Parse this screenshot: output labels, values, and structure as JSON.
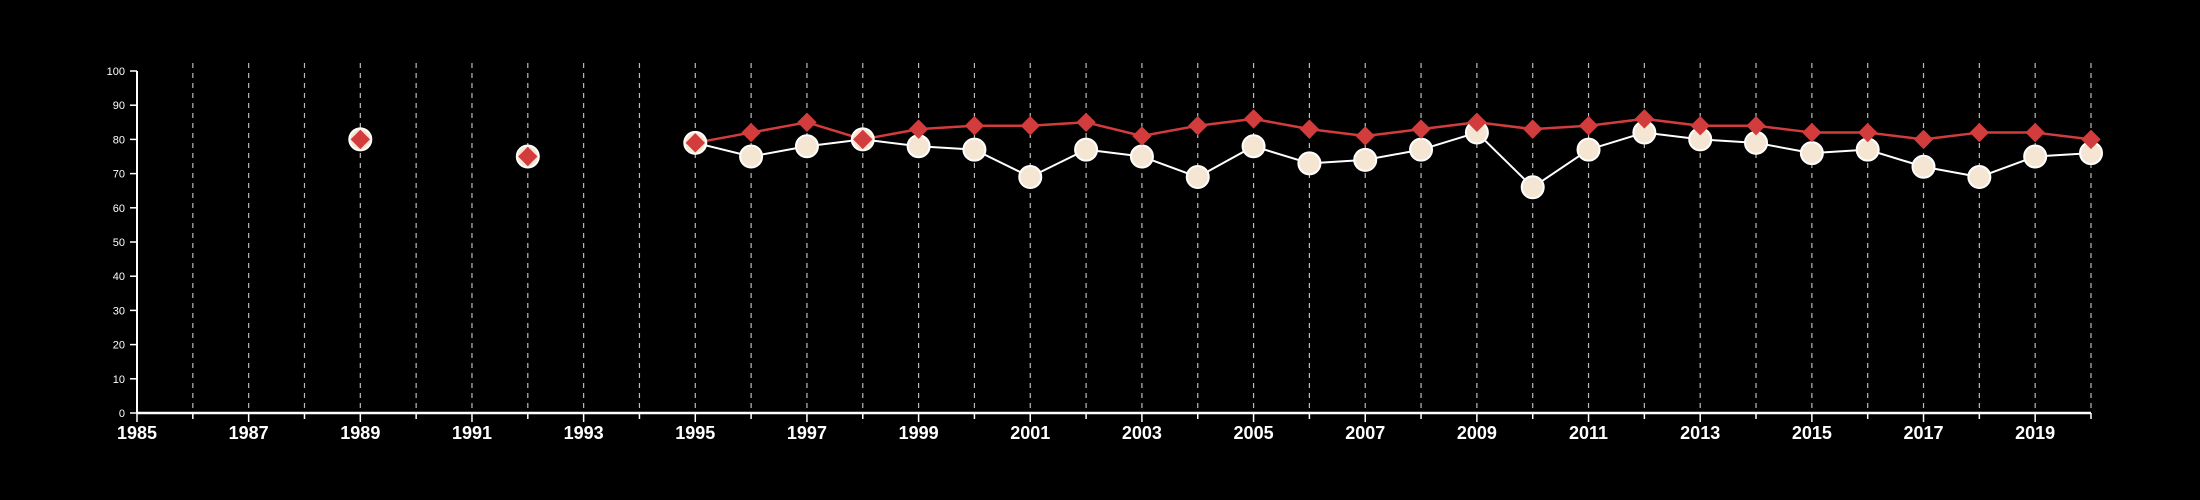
{
  "chart_data": {
    "type": "line",
    "title": "",
    "xlabel": "",
    "ylabel": "",
    "xlim": [
      1985,
      2020
    ],
    "ylim": [
      0,
      100
    ],
    "y_ticks": [
      0,
      10,
      20,
      30,
      40,
      50,
      60,
      70,
      80,
      90,
      100
    ],
    "x_ticks": [
      1985,
      1987,
      1989,
      1991,
      1993,
      1995,
      1997,
      1999,
      2001,
      2003,
      2005,
      2007,
      2009,
      2011,
      2013,
      2015,
      2017,
      2019
    ],
    "x_tick_labels": [
      "1985",
      "1987",
      "1989",
      "1991",
      "1993",
      "1995",
      "1997",
      "1999",
      "2001",
      "2003",
      "2005",
      "2007",
      "2009",
      "2011",
      "2013",
      "2015",
      "2017",
      "2019"
    ],
    "vertical_dashed_gridlines": true,
    "legend": "none",
    "series": [
      {
        "marker": "circle",
        "color": "#f5e6d3",
        "points": [
          {
            "x": 1989,
            "y": 80
          },
          {
            "x": 1992,
            "y": 75
          },
          {
            "x": 1995,
            "y": 79
          },
          {
            "x": 1996,
            "y": 75
          },
          {
            "x": 1997,
            "y": 78
          },
          {
            "x": 1998,
            "y": 80
          },
          {
            "x": 1999,
            "y": 78
          },
          {
            "x": 2000,
            "y": 77
          },
          {
            "x": 2001,
            "y": 69
          },
          {
            "x": 2002,
            "y": 77
          },
          {
            "x": 2003,
            "y": 75
          },
          {
            "x": 2004,
            "y": 69
          },
          {
            "x": 2005,
            "y": 78
          },
          {
            "x": 2006,
            "y": 73
          },
          {
            "x": 2007,
            "y": 74
          },
          {
            "x": 2008,
            "y": 77
          },
          {
            "x": 2009,
            "y": 82
          },
          {
            "x": 2010,
            "y": 66
          },
          {
            "x": 2011,
            "y": 77
          },
          {
            "x": 2012,
            "y": 82
          },
          {
            "x": 2013,
            "y": 80
          },
          {
            "x": 2014,
            "y": 79
          },
          {
            "x": 2015,
            "y": 76
          },
          {
            "x": 2016,
            "y": 77
          },
          {
            "x": 2017,
            "y": 72
          },
          {
            "x": 2018,
            "y": 69
          },
          {
            "x": 2019,
            "y": 75
          },
          {
            "x": 2020,
            "y": 76
          }
        ]
      },
      {
        "marker": "diamond",
        "color": "#d23c3c",
        "points": [
          {
            "x": 1989,
            "y": 80
          },
          {
            "x": 1992,
            "y": 75
          },
          {
            "x": 1995,
            "y": 79
          },
          {
            "x": 1996,
            "y": 82
          },
          {
            "x": 1997,
            "y": 85
          },
          {
            "x": 1998,
            "y": 80
          },
          {
            "x": 1999,
            "y": 83
          },
          {
            "x": 2000,
            "y": 84
          },
          {
            "x": 2001,
            "y": 84
          },
          {
            "x": 2002,
            "y": 85
          },
          {
            "x": 2003,
            "y": 81
          },
          {
            "x": 2004,
            "y": 84
          },
          {
            "x": 2005,
            "y": 86
          },
          {
            "x": 2006,
            "y": 83
          },
          {
            "x": 2007,
            "y": 81
          },
          {
            "x": 2008,
            "y": 83
          },
          {
            "x": 2009,
            "y": 85
          },
          {
            "x": 2010,
            "y": 83
          },
          {
            "x": 2011,
            "y": 84
          },
          {
            "x": 2012,
            "y": 86
          },
          {
            "x": 2013,
            "y": 84
          },
          {
            "x": 2014,
            "y": 84
          },
          {
            "x": 2015,
            "y": 82
          },
          {
            "x": 2016,
            "y": 82
          },
          {
            "x": 2017,
            "y": 80
          },
          {
            "x": 2018,
            "y": 82
          },
          {
            "x": 2019,
            "y": 82
          },
          {
            "x": 2020,
            "y": 80
          }
        ]
      }
    ],
    "colors": {
      "background": "#000000",
      "axis": "#ffffff",
      "gridline": "#bbbbbb",
      "circle_outline": "#ffffff"
    }
  }
}
